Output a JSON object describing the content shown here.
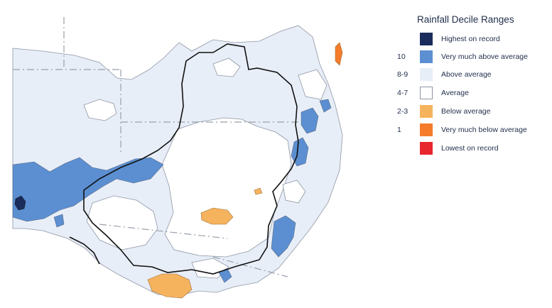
{
  "legend": {
    "title": "Rainfall Decile Ranges",
    "items": [
      {
        "range": "",
        "label": "Highest on record",
        "color": "#1a2c5b"
      },
      {
        "range": "10",
        "label": "Very much above average",
        "color": "#5b8fd1"
      },
      {
        "range": "8-9",
        "label": "Above average",
        "color": "#e8eef8"
      },
      {
        "range": "4-7",
        "label": "Average",
        "color": "#ffffff"
      },
      {
        "range": "2-3",
        "label": "Below average",
        "color": "#f6b35e"
      },
      {
        "range": "1",
        "label": "Very much below average",
        "color": "#f47c2a"
      },
      {
        "range": "",
        "label": "Lowest on record",
        "color": "#e8262e"
      }
    ]
  },
  "map": {
    "colors": {
      "ocean": "#ffffff",
      "above": "#e8eef8",
      "very_much_above": "#5b8fd1",
      "highest": "#1a2c5b",
      "average": "#ffffff",
      "below": "#f6b35e",
      "very_much_below": "#f47c2a",
      "outline": "#8e96a3",
      "border": "#111111",
      "grid": "#98a0ab"
    }
  }
}
